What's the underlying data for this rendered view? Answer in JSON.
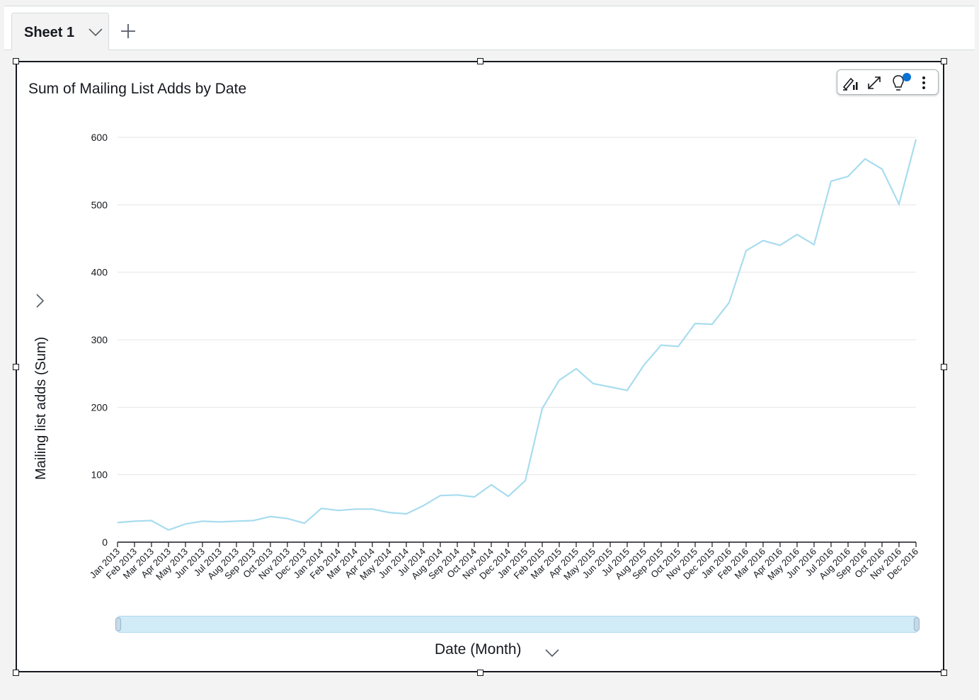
{
  "sheet": {
    "tab_label": "Sheet 1"
  },
  "visual": {
    "title": "Sum of Mailing List Adds by Date",
    "menu_icons": [
      "format-visual-icon",
      "expand-icon",
      "insights-lightbulb-icon",
      "more-options-icon"
    ]
  },
  "colors": {
    "line": "#a8dcef",
    "grid": "#e6e6e6",
    "border": "#16191f"
  },
  "chart_data": {
    "type": "line",
    "title": "Sum of Mailing List Adds by Date",
    "xlabel": "Date (Month)",
    "ylabel": "Mailing list adds (Sum)",
    "ylim": [
      0,
      600
    ],
    "yticks": [
      0,
      100,
      200,
      300,
      400,
      500,
      600
    ],
    "grid": true,
    "categories": [
      "Jan 2013",
      "Feb 2013",
      "Mar 2013",
      "Apr 2013",
      "May 2013",
      "Jun 2013",
      "Jul 2013",
      "Aug 2013",
      "Sep 2013",
      "Oct 2013",
      "Nov 2013",
      "Dec 2013",
      "Jan 2014",
      "Feb 2014",
      "Mar 2014",
      "Apr 2014",
      "May 2014",
      "Jun 2014",
      "Jul 2014",
      "Aug 2014",
      "Sep 2014",
      "Oct 2014",
      "Nov 2014",
      "Dec 2014",
      "Jan 2015",
      "Feb 2015",
      "Mar 2015",
      "Apr 2015",
      "May 2015",
      "Jun 2015",
      "Jul 2015",
      "Aug 2015",
      "Sep 2015",
      "Oct 2015",
      "Nov 2015",
      "Dec 2015",
      "Jan 2016",
      "Feb 2016",
      "Mar 2016",
      "Apr 2016",
      "May 2016",
      "Jun 2016",
      "Jul 2016",
      "Aug 2016",
      "Sep 2016",
      "Oct 2016",
      "Nov 2016",
      "Dec 2016"
    ],
    "values": [
      29,
      31,
      32,
      18,
      27,
      31,
      30,
      31,
      32,
      38,
      35,
      28,
      50,
      47,
      49,
      49,
      44,
      42,
      54,
      69,
      70,
      67,
      85,
      68,
      91,
      198,
      240,
      257,
      235,
      230,
      225,
      263,
      292,
      290,
      324,
      323,
      355,
      432,
      447,
      440,
      456,
      441,
      535,
      542,
      568,
      553,
      501,
      597
    ]
  }
}
